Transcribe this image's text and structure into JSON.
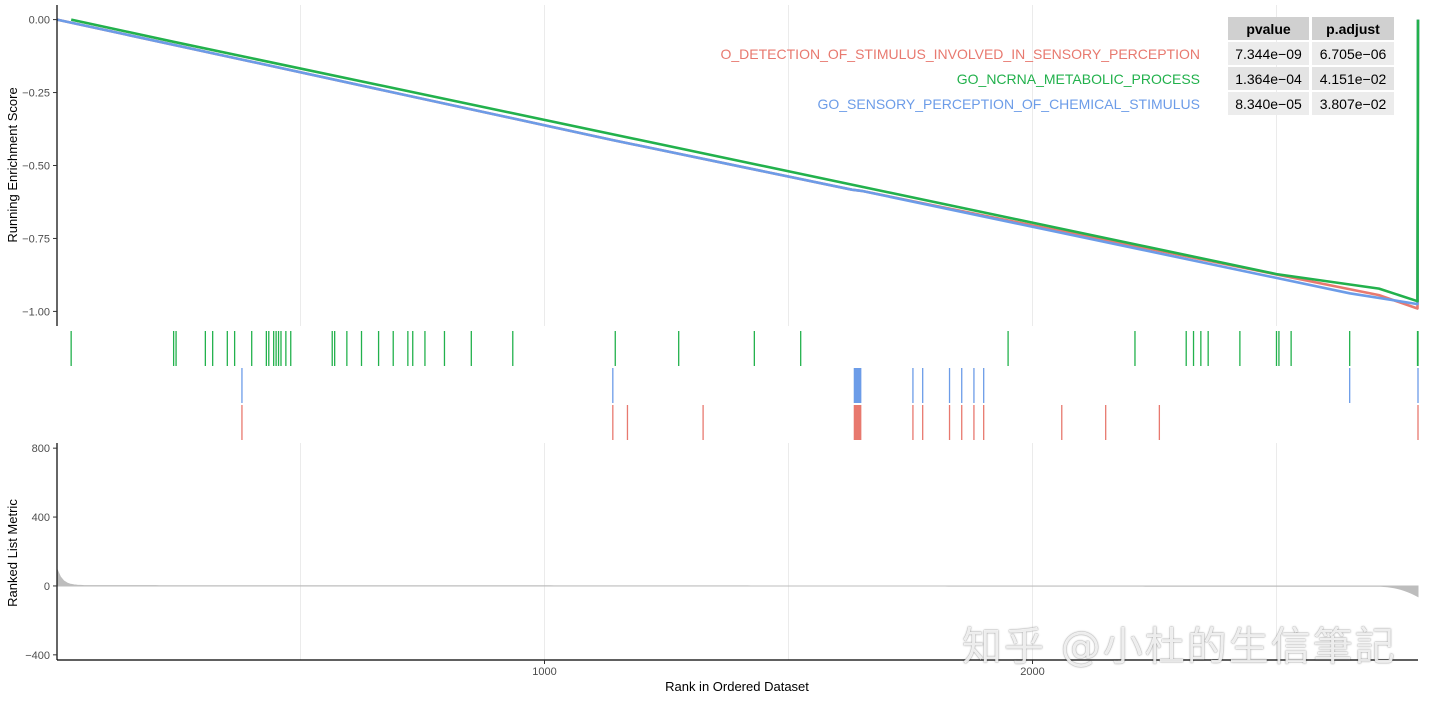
{
  "chart_data": {
    "type": "line",
    "panels": [
      "running-enrichment",
      "hit-ticks",
      "ranked-list"
    ],
    "x": {
      "label": "Rank in Ordered Dataset",
      "range": [
        1,
        2790
      ],
      "ticks": [
        1000,
        2000
      ]
    },
    "running_score": {
      "ylabel": "Running Enrichment Score",
      "ylim": [
        -1.05,
        0.05
      ],
      "ticks": [
        0.0,
        -0.25,
        -0.5,
        -0.75,
        -1.0
      ],
      "tick_labels": [
        "0.00",
        "−0.25",
        "−0.50",
        "−0.75",
        "−1.00"
      ]
    },
    "series": [
      {
        "name": "O_DETECTION_OF_STIMULUS_INVOLVED_IN_SENSORY_PERCEPTION",
        "color": "#E8796F",
        "points": [
          [
            1,
            0
          ],
          [
            380,
            -0.137
          ],
          [
            1140,
            -0.413
          ],
          [
            1630,
            -0.583
          ],
          [
            1650,
            -0.587
          ],
          [
            2710,
            -0.944
          ],
          [
            2789,
            -0.99
          ],
          [
            2790,
            0.0
          ]
        ],
        "hits": [
          380,
          1140,
          1170,
          1325,
          1635,
          1636,
          1637,
          1638,
          1639,
          1640,
          1641,
          1642,
          1643,
          1644,
          1645,
          1646,
          1647,
          1648,
          1755,
          1775,
          1830,
          1855,
          1880,
          1900,
          2060,
          2150,
          2260,
          2790
        ]
      },
      {
        "name": "GO_NCRNA_METABOLIC_PROCESS",
        "color": "#22B14C",
        "points": [
          [
            30,
            0
          ],
          [
            240,
            -0.076
          ],
          [
            2500,
            -0.872
          ],
          [
            2710,
            -0.922
          ],
          [
            2789,
            -0.965
          ],
          [
            2790,
            0.0
          ]
        ],
        "hits": [
          30,
          240,
          245,
          305,
          320,
          350,
          365,
          400,
          430,
          435,
          445,
          450,
          455,
          460,
          470,
          480,
          565,
          570,
          595,
          625,
          660,
          690,
          720,
          730,
          755,
          795,
          850,
          935,
          1145,
          1275,
          1430,
          1525,
          1950,
          2210,
          2315,
          2330,
          2345,
          2360,
          2425,
          2500,
          2505,
          2530,
          2650,
          2789,
          2790
        ]
      },
      {
        "name": "GO_SENSORY_PERCEPTION_OF_CHEMICAL_STIMULUS",
        "color": "#6C9CE8",
        "points": [
          [
            1,
            0
          ],
          [
            380,
            -0.137
          ],
          [
            1140,
            -0.413
          ],
          [
            1630,
            -0.583
          ],
          [
            1650,
            -0.587
          ],
          [
            2650,
            -0.938
          ],
          [
            2789,
            -0.975
          ],
          [
            2790,
            0.0
          ]
        ],
        "hits": [
          380,
          1140,
          1635,
          1636,
          1637,
          1638,
          1639,
          1640,
          1641,
          1642,
          1643,
          1644,
          1645,
          1646,
          1647,
          1648,
          1755,
          1775,
          1830,
          1855,
          1880,
          1900,
          2650,
          2790
        ]
      }
    ],
    "ranked_list": {
      "ylabel": "Ranked List Metric",
      "ylim": [
        -430,
        830
      ],
      "ticks": [
        800,
        400,
        0,
        -400
      ],
      "tick_labels": [
        "800",
        "400",
        "0",
        "−400"
      ],
      "color": "#BDBDBD"
    },
    "table": {
      "headers": [
        "pvalue",
        "p.adjust"
      ],
      "rows": [
        [
          "7.344e−09",
          "6.705e−06"
        ],
        [
          "1.364e−04",
          "4.151e−02"
        ],
        [
          "8.340e−05",
          "3.807e−02"
        ]
      ]
    }
  },
  "watermark": "知乎 @小杜的生信筆記"
}
